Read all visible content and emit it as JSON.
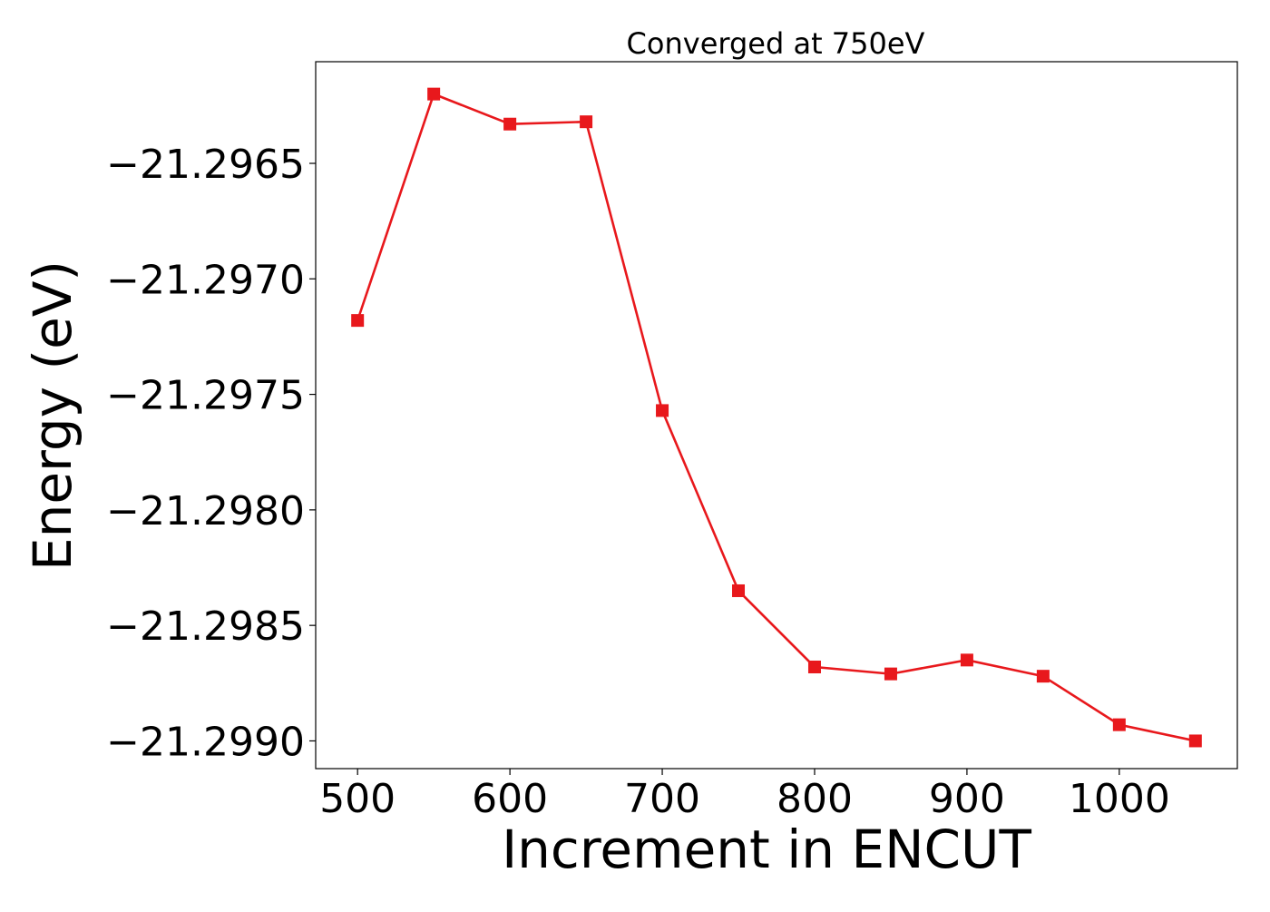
{
  "chart_data": {
    "type": "line",
    "title": "Converged at 750eV",
    "xlabel": "Increment in ENCUT",
    "ylabel": "Energy (eV)",
    "xlim": [
      472.5,
      1077.5
    ],
    "ylim": [
      -21.29912,
      -21.29606
    ],
    "x_ticks": [
      500,
      600,
      700,
      800,
      900,
      1000
    ],
    "x_tick_labels": [
      "500",
      "600",
      "700",
      "800",
      "900",
      "1000"
    ],
    "y_ticks": [
      -21.2965,
      -21.297,
      -21.2975,
      -21.298,
      -21.2985,
      -21.299
    ],
    "y_tick_labels": [
      "−21.2965",
      "−21.2970",
      "−21.2975",
      "−21.2980",
      "−21.2985",
      "−21.2990"
    ],
    "grid": false,
    "series": [
      {
        "color": "#e8181c",
        "marker": "square",
        "x": [
          500,
          550,
          600,
          650,
          700,
          750,
          800,
          850,
          900,
          950,
          1000,
          1050
        ],
        "values": [
          -21.29718,
          -21.2962,
          -21.29633,
          -21.29632,
          -21.29757,
          -21.29835,
          -21.29868,
          -21.29871,
          -21.29865,
          -21.29872,
          -21.29893,
          -21.299
        ]
      }
    ]
  }
}
